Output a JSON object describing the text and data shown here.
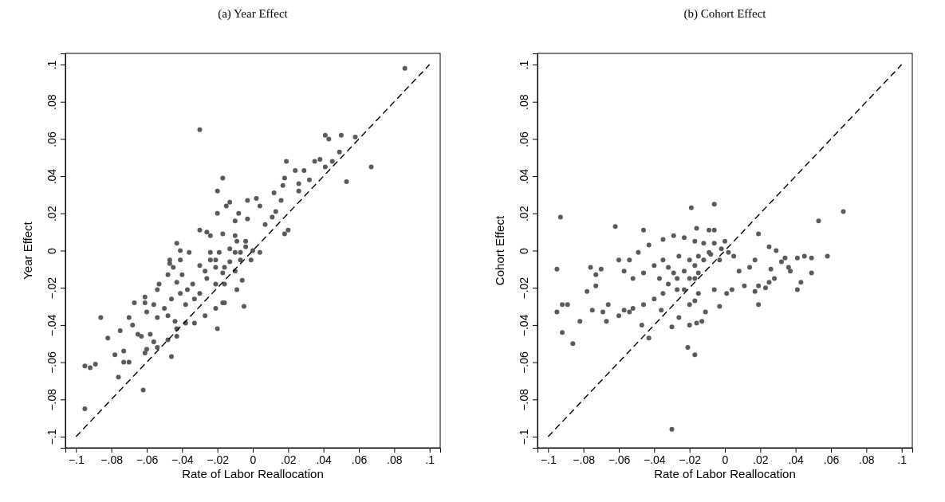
{
  "chart_data": [
    {
      "type": "scatter",
      "title": "(a) Year Effect",
      "xlabel": "Rate of Labor Reallocation",
      "ylabel": "Year Effect",
      "xlim": [
        -0.106,
        0.106
      ],
      "ylim": [
        -0.106,
        0.106
      ],
      "xticks": [
        {
          "value": -0.1,
          "label": "−.1"
        },
        {
          "value": -0.08,
          "label": "−.08"
        },
        {
          "value": -0.06,
          "label": "−.06"
        },
        {
          "value": -0.04,
          "label": "−.04"
        },
        {
          "value": -0.02,
          "label": "−.02"
        },
        0,
        {
          "value": 0.02,
          "label": ".02"
        },
        {
          "value": 0.04,
          "label": ".04"
        },
        {
          "value": 0.06,
          "label": ".06"
        },
        {
          "value": 0.08,
          "label": ".08"
        },
        {
          "value": 0.1,
          "label": ".1"
        }
      ],
      "yticks": [
        {
          "value": -0.1,
          "label": "−.1"
        },
        {
          "value": -0.08,
          "label": "−.08"
        },
        {
          "value": -0.06,
          "label": "−.06"
        },
        {
          "value": -0.04,
          "label": "−.04"
        },
        {
          "value": -0.02,
          "label": "−.02"
        },
        0,
        {
          "value": 0.02,
          "label": ".02"
        },
        {
          "value": 0.04,
          "label": ".04"
        },
        {
          "value": 0.06,
          "label": ".06"
        },
        {
          "value": 0.08,
          "label": ".08"
        },
        {
          "value": 0.1,
          "label": ".1"
        }
      ],
      "grid": false,
      "series": [
        {
          "type": "scatter",
          "color": "#5a5a5a",
          "marker": "circle",
          "x": [
            0.086,
            -0.03,
            0.067,
            0.053,
            0.041,
            0.043,
            0.05,
            0.058,
            0.049,
            0.045,
            0.038,
            0.035,
            0.041,
            0.032,
            0.024,
            0.029,
            0.019,
            0.018,
            0.026,
            0.017,
            -0.017,
            -0.02,
            0.012,
            0.026,
            -0.015,
            0.002,
            -0.003,
            -0.013,
            -0.02,
            -0.008,
            0.004,
            0.016,
            0.013,
            0.02,
            0.018,
            0.011,
            0.007,
            -0.01,
            -0.003,
            -0.03,
            -0.026,
            -0.024,
            -0.043,
            -0.041,
            -0.036,
            -0.017,
            -0.01,
            -0.004,
            0.0,
            0.004,
            -0.001,
            -0.007,
            -0.013,
            -0.019,
            -0.024,
            -0.03,
            -0.021,
            -0.013,
            -0.01,
            -0.017,
            -0.026,
            -0.034,
            -0.037,
            -0.03,
            -0.021,
            -0.016,
            -0.006,
            -0.009,
            -0.047,
            -0.047,
            -0.045,
            -0.041,
            -0.04,
            -0.048,
            -0.053,
            -0.054,
            -0.043,
            -0.041,
            -0.033,
            -0.038,
            -0.046,
            -0.05,
            -0.056,
            -0.061,
            -0.061,
            -0.067,
            -0.06,
            -0.054,
            -0.048,
            -0.044,
            -0.043,
            -0.038,
            -0.033,
            -0.027,
            -0.021,
            -0.017,
            -0.016,
            -0.005,
            -0.02,
            -0.07,
            -0.068,
            -0.065,
            -0.063,
            -0.058,
            -0.056,
            -0.054,
            -0.06,
            -0.061,
            -0.048,
            -0.043,
            -0.046,
            -0.086,
            -0.082,
            -0.075,
            -0.078,
            -0.073,
            -0.073,
            -0.07,
            -0.076,
            -0.095,
            -0.092,
            -0.089,
            -0.062,
            -0.095,
            -0.01,
            -0.021,
            -0.027,
            -0.007,
            -0.016,
            -0.004,
            -0.009,
            -0.024
          ],
          "values": [
            0.098,
            0.065,
            0.045,
            0.037,
            0.062,
            0.06,
            0.062,
            0.061,
            0.053,
            0.048,
            0.049,
            0.048,
            0.045,
            0.038,
            0.043,
            0.043,
            0.048,
            0.039,
            0.036,
            0.035,
            0.039,
            0.032,
            0.031,
            0.032,
            0.024,
            0.028,
            0.027,
            0.026,
            0.02,
            0.02,
            0.024,
            0.027,
            0.021,
            0.011,
            0.009,
            0.018,
            0.014,
            0.016,
            0.017,
            0.011,
            0.01,
            0.008,
            0.004,
            0.0,
            -0.001,
            0.009,
            0.008,
            0.005,
            0.0,
            -0.001,
            -0.005,
            -0.001,
            0.001,
            -0.001,
            -0.005,
            -0.008,
            -0.009,
            -0.006,
            -0.011,
            -0.012,
            -0.015,
            -0.018,
            -0.021,
            -0.023,
            -0.018,
            -0.018,
            -0.016,
            -0.021,
            -0.005,
            -0.007,
            -0.009,
            -0.005,
            -0.013,
            -0.013,
            -0.018,
            -0.021,
            -0.017,
            -0.023,
            -0.026,
            -0.029,
            -0.026,
            -0.031,
            -0.029,
            -0.025,
            -0.028,
            -0.028,
            -0.033,
            -0.036,
            -0.035,
            -0.038,
            -0.042,
            -0.039,
            -0.039,
            -0.035,
            -0.031,
            -0.028,
            -0.028,
            -0.03,
            -0.042,
            -0.036,
            -0.04,
            -0.045,
            -0.046,
            -0.045,
            -0.049,
            -0.052,
            -0.053,
            -0.055,
            -0.048,
            -0.046,
            -0.057,
            -0.036,
            -0.047,
            -0.043,
            -0.056,
            -0.054,
            -0.06,
            -0.06,
            -0.068,
            -0.062,
            -0.063,
            -0.061,
            -0.075,
            -0.085,
            -0.001,
            -0.005,
            -0.011,
            -0.005,
            -0.009,
            0.002,
            0.005,
            -0.001
          ]
        },
        {
          "type": "line",
          "color": "#000000",
          "marker": "none",
          "line_style": "dashed",
          "x": [
            -0.1,
            0.1
          ],
          "values": [
            -0.1,
            0.1
          ]
        }
      ]
    },
    {
      "type": "scatter",
      "title": "(b) Cohort Effect",
      "xlabel": "Rate of Labor Reallocation",
      "ylabel": "Cohort Effect",
      "xlim": [
        -0.106,
        0.106
      ],
      "ylim": [
        -0.106,
        0.106
      ],
      "xticks": [
        {
          "value": -0.1,
          "label": "−.1"
        },
        {
          "value": -0.08,
          "label": "−.08"
        },
        {
          "value": -0.06,
          "label": "−.06"
        },
        {
          "value": -0.04,
          "label": "−.04"
        },
        {
          "value": -0.02,
          "label": "−.02"
        },
        0,
        {
          "value": 0.02,
          "label": ".02"
        },
        {
          "value": 0.04,
          "label": ".04"
        },
        {
          "value": 0.06,
          "label": ".06"
        },
        {
          "value": 0.08,
          "label": ".08"
        },
        {
          "value": 0.1,
          "label": ".1"
        }
      ],
      "yticks": [
        {
          "value": -0.1,
          "label": "−.1"
        },
        {
          "value": -0.08,
          "label": "−.08"
        },
        {
          "value": -0.06,
          "label": "−.06"
        },
        {
          "value": -0.04,
          "label": "−.04"
        },
        {
          "value": -0.02,
          "label": "−.02"
        },
        0,
        {
          "value": 0.02,
          "label": ".02"
        },
        {
          "value": 0.04,
          "label": ".04"
        },
        {
          "value": 0.06,
          "label": ".06"
        },
        {
          "value": 0.08,
          "label": ".08"
        },
        {
          "value": 0.1,
          "label": ".1"
        }
      ],
      "grid": false,
      "series": [
        {
          "type": "scatter",
          "color": "#5a5a5a",
          "marker": "circle",
          "x": [
            -0.093,
            -0.095,
            -0.095,
            -0.092,
            -0.089,
            -0.092,
            -0.086,
            -0.082,
            -0.078,
            -0.075,
            -0.076,
            -0.073,
            -0.073,
            -0.07,
            -0.062,
            -0.046,
            -0.019,
            -0.006,
            -0.016,
            -0.009,
            -0.006,
            0.067,
            0.053,
            0.058,
            0.049,
            0.049,
            0.045,
            0.041,
            0.043,
            0.041,
            0.037,
            0.036,
            0.034,
            0.032,
            0.029,
            0.025,
            0.026,
            0.028,
            0.025,
            0.023,
            0.019,
            0.019,
            0.017,
            0.019,
            0.011,
            0.014,
            0.017,
            0.008,
            0.005,
            0.002,
            -0.002,
            -0.008,
            -0.012,
            -0.017,
            -0.023,
            -0.027,
            -0.02,
            -0.015,
            -0.032,
            -0.035,
            -0.04,
            -0.046,
            -0.052,
            -0.057,
            -0.06,
            -0.054,
            -0.049,
            -0.043,
            -0.035,
            -0.029,
            -0.023,
            -0.017,
            -0.012,
            -0.006,
            0.0,
            -0.027,
            -0.035,
            -0.04,
            -0.046,
            -0.052,
            -0.057,
            -0.066,
            -0.069,
            -0.067,
            -0.06,
            -0.054,
            -0.047,
            -0.043,
            -0.036,
            -0.03,
            -0.026,
            -0.02,
            -0.016,
            -0.013,
            -0.011,
            -0.02,
            -0.015,
            -0.006,
            -0.003,
            0.001,
            0.004,
            -0.017,
            -0.021,
            -0.017,
            -0.03,
            -0.02,
            -0.015,
            -0.009,
            -0.026,
            -0.029,
            -0.032,
            -0.023,
            -0.003,
            -0.037,
            -0.017
          ],
          "values": [
            0.018,
            -0.01,
            -0.033,
            -0.029,
            -0.029,
            -0.044,
            -0.05,
            -0.038,
            -0.022,
            -0.032,
            -0.009,
            -0.013,
            -0.019,
            -0.01,
            0.013,
            0.011,
            0.023,
            0.025,
            0.012,
            0.011,
            0.011,
            0.021,
            0.016,
            -0.003,
            -0.012,
            -0.004,
            -0.003,
            -0.021,
            -0.017,
            -0.004,
            -0.011,
            -0.009,
            -0.004,
            -0.006,
            0.0,
            0.002,
            -0.01,
            -0.015,
            -0.017,
            -0.02,
            0.009,
            -0.029,
            -0.022,
            -0.019,
            -0.019,
            -0.009,
            -0.005,
            -0.011,
            -0.003,
            -0.001,
            0.001,
            -0.002,
            -0.005,
            -0.008,
            -0.011,
            -0.015,
            -0.015,
            -0.012,
            -0.009,
            -0.005,
            -0.008,
            -0.012,
            -0.015,
            -0.011,
            -0.005,
            -0.005,
            -0.001,
            0.003,
            0.006,
            0.008,
            0.007,
            0.005,
            0.004,
            0.004,
            0.005,
            -0.021,
            -0.023,
            -0.026,
            -0.029,
            -0.031,
            -0.032,
            -0.029,
            -0.033,
            -0.038,
            -0.035,
            -0.033,
            -0.04,
            -0.047,
            -0.032,
            -0.041,
            -0.036,
            -0.04,
            -0.039,
            -0.038,
            -0.033,
            -0.029,
            -0.023,
            -0.021,
            -0.03,
            -0.023,
            -0.021,
            -0.027,
            -0.052,
            -0.056,
            -0.096,
            -0.005,
            -0.003,
            -0.001,
            -0.003,
            -0.012,
            -0.018,
            -0.021,
            -0.005,
            -0.015,
            -0.015
          ]
        },
        {
          "type": "line",
          "color": "#000000",
          "marker": "none",
          "line_style": "dashed",
          "x": [
            -0.1,
            0.1
          ],
          "values": [
            -0.1,
            0.1
          ]
        }
      ]
    }
  ]
}
